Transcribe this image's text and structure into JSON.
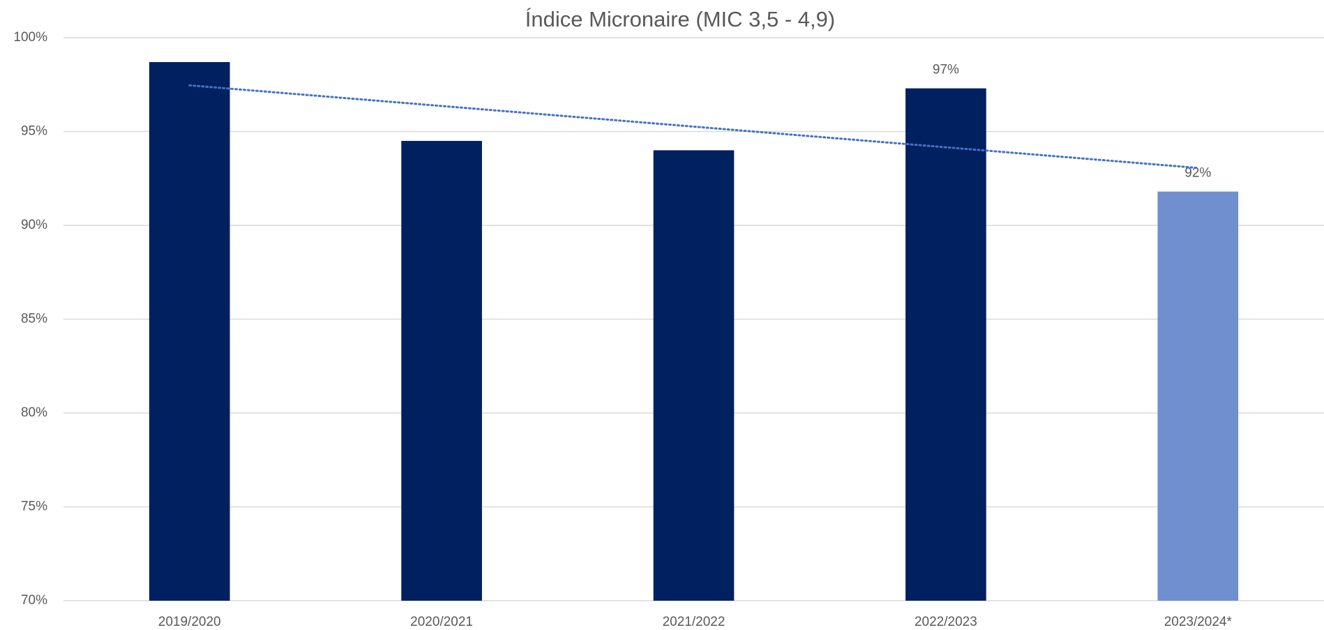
{
  "chart_data": {
    "type": "bar",
    "title": "Índice Micronaire (MIC 3,5 - 4,9)",
    "categories": [
      "2019/2020",
      "2020/2021",
      "2021/2022",
      "2022/2023",
      "2023/2024*"
    ],
    "values": [
      98.7,
      94.5,
      94.0,
      97.3,
      91.8
    ],
    "value_labels": [
      null,
      null,
      null,
      "97%",
      "92%"
    ],
    "colors": [
      "#002060",
      "#002060",
      "#002060",
      "#002060",
      "#6f8fcf"
    ],
    "ylim": [
      70,
      100
    ],
    "yticks": [
      {
        "value": 70,
        "label": "70%"
      },
      {
        "value": 75,
        "label": "75%"
      },
      {
        "value": 80,
        "label": "80%"
      },
      {
        "value": 85,
        "label": "85%"
      },
      {
        "value": 90,
        "label": "90%"
      },
      {
        "value": 95,
        "label": "95%"
      },
      {
        "value": 100,
        "label": "100%"
      }
    ],
    "grid": true,
    "trendline": {
      "type": "linear",
      "color": "#4472c4"
    }
  }
}
